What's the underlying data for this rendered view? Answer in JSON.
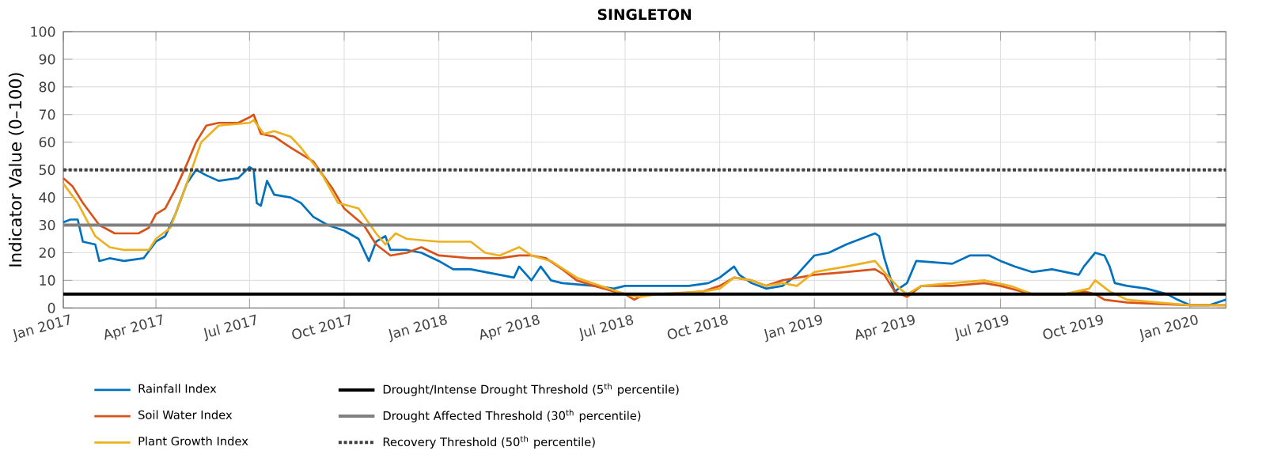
{
  "chart_data": {
    "type": "line",
    "title": "SINGLETON",
    "ylabel": "Indicator Value (0–100)",
    "xlim": [
      "2017-01-01",
      "2020-02-05"
    ],
    "ylim": [
      0,
      100
    ],
    "xticks": [
      {
        "value": "2017-01-01",
        "label": "Jan 2017"
      },
      {
        "value": "2017-04-01",
        "label": "Apr 2017"
      },
      {
        "value": "2017-07-01",
        "label": "Jul 2017"
      },
      {
        "value": "2017-10-01",
        "label": "Oct 2017"
      },
      {
        "value": "2018-01-01",
        "label": "Jan 2018"
      },
      {
        "value": "2018-04-01",
        "label": "Apr 2018"
      },
      {
        "value": "2018-07-01",
        "label": "Jul 2018"
      },
      {
        "value": "2018-10-01",
        "label": "Oct 2018"
      },
      {
        "value": "2019-01-01",
        "label": "Jan 2019"
      },
      {
        "value": "2019-04-01",
        "label": "Apr 2019"
      },
      {
        "value": "2019-07-01",
        "label": "Jul 2019"
      },
      {
        "value": "2019-10-01",
        "label": "Oct 2019"
      },
      {
        "value": "2020-01-01",
        "label": "Jan 2020"
      }
    ],
    "yticks": [
      0,
      10,
      20,
      30,
      40,
      50,
      60,
      70,
      80,
      90,
      100
    ],
    "grid": true,
    "legend": "bottom",
    "marker": "none",
    "line_style": "solid",
    "series": [
      {
        "name": "Rainfall Index",
        "color": "#0072bd",
        "x": [
          "2017-01-01",
          "2017-01-08",
          "2017-01-15",
          "2017-01-20",
          "2017-02-01",
          "2017-02-05",
          "2017-02-15",
          "2017-03-01",
          "2017-03-20",
          "2017-04-01",
          "2017-04-10",
          "2017-04-20",
          "2017-05-01",
          "2017-05-10",
          "2017-05-20",
          "2017-06-01",
          "2017-06-20",
          "2017-07-01",
          "2017-07-05",
          "2017-07-08",
          "2017-07-12",
          "2017-07-18",
          "2017-07-25",
          "2017-08-10",
          "2017-08-20",
          "2017-09-01",
          "2017-09-15",
          "2017-10-01",
          "2017-10-15",
          "2017-10-25",
          "2017-11-01",
          "2017-11-10",
          "2017-11-15",
          "2017-12-01",
          "2017-12-15",
          "2018-01-01",
          "2018-01-15",
          "2018-02-01",
          "2018-02-15",
          "2018-03-01",
          "2018-03-15",
          "2018-03-20",
          "2018-04-01",
          "2018-04-10",
          "2018-04-20",
          "2018-05-01",
          "2018-06-01",
          "2018-06-20",
          "2018-07-01",
          "2018-08-01",
          "2018-09-01",
          "2018-09-20",
          "2018-10-01",
          "2018-10-15",
          "2018-10-20",
          "2018-11-01",
          "2018-11-15",
          "2018-12-01",
          "2018-12-15",
          "2019-01-01",
          "2019-01-15",
          "2019-02-01",
          "2019-02-15",
          "2019-03-01",
          "2019-03-05",
          "2019-03-10",
          "2019-03-15",
          "2019-03-20",
          "2019-04-01",
          "2019-04-10",
          "2019-05-15",
          "2019-06-01",
          "2019-06-20",
          "2019-07-01",
          "2019-07-15",
          "2019-08-01",
          "2019-08-20",
          "2019-09-15",
          "2019-09-20",
          "2019-10-01",
          "2019-10-10",
          "2019-10-15",
          "2019-10-20",
          "2019-11-01",
          "2019-11-20",
          "2019-12-10",
          "2019-12-20",
          "2020-01-01",
          "2020-01-20",
          "2020-02-05"
        ],
        "values": [
          31,
          32,
          32,
          24,
          23,
          17,
          18,
          17,
          18,
          24,
          26,
          34,
          45,
          50,
          48,
          46,
          47,
          51,
          50,
          38,
          37,
          46,
          41,
          40,
          38,
          33,
          30,
          28,
          25,
          17,
          24,
          26,
          21,
          21,
          20,
          17,
          14,
          14,
          13,
          12,
          11,
          15,
          10,
          15,
          10,
          9,
          8,
          7,
          8,
          8,
          8,
          9,
          11,
          15,
          12,
          9,
          7,
          8,
          12,
          19,
          20,
          23,
          25,
          27,
          26,
          18,
          12,
          6,
          9,
          17,
          16,
          19,
          19,
          17,
          15,
          13,
          14,
          12,
          15,
          20,
          19,
          15,
          9,
          8,
          7,
          5,
          3,
          1,
          1,
          3
        ]
      },
      {
        "name": "Soil Water Index",
        "color": "#d95319",
        "x": [
          "2017-01-01",
          "2017-01-10",
          "2017-01-20",
          "2017-02-05",
          "2017-02-20",
          "2017-03-15",
          "2017-03-25",
          "2017-04-01",
          "2017-04-10",
          "2017-04-20",
          "2017-05-01",
          "2017-05-10",
          "2017-05-20",
          "2017-06-01",
          "2017-06-20",
          "2017-07-01",
          "2017-07-05",
          "2017-07-12",
          "2017-07-25",
          "2017-08-10",
          "2017-09-01",
          "2017-09-20",
          "2017-10-01",
          "2017-10-20",
          "2017-11-01",
          "2017-11-15",
          "2017-12-01",
          "2017-12-15",
          "2018-01-01",
          "2018-02-01",
          "2018-03-01",
          "2018-03-20",
          "2018-04-01",
          "2018-04-15",
          "2018-05-01",
          "2018-05-15",
          "2018-06-01",
          "2018-06-20",
          "2018-07-01",
          "2018-07-10",
          "2018-07-20",
          "2018-08-15",
          "2018-09-15",
          "2018-10-01",
          "2018-10-15",
          "2018-11-01",
          "2018-11-15",
          "2018-12-01",
          "2019-01-01",
          "2019-02-01",
          "2019-03-01",
          "2019-03-10",
          "2019-03-20",
          "2019-04-01",
          "2019-04-15",
          "2019-05-15",
          "2019-06-15",
          "2019-07-01",
          "2019-08-01",
          "2019-09-01",
          "2019-09-20",
          "2019-10-01",
          "2019-10-10",
          "2019-11-01",
          "2019-12-01",
          "2020-01-01",
          "2020-02-05"
        ],
        "values": [
          47,
          44,
          38,
          30,
          27,
          27,
          29,
          34,
          36,
          43,
          52,
          60,
          66,
          67,
          67,
          69,
          70,
          63,
          62,
          58,
          53,
          43,
          36,
          30,
          23,
          19,
          20,
          22,
          19,
          18,
          18,
          19,
          19,
          18,
          14,
          10,
          8,
          6,
          5,
          3,
          5,
          5,
          6,
          8,
          11,
          10,
          8,
          10,
          12,
          13,
          14,
          12,
          6,
          4,
          8,
          8,
          9,
          8,
          5,
          5,
          6,
          5,
          3,
          2,
          1.5,
          1,
          1
        ]
      },
      {
        "name": "Plant Growth Index",
        "color": "#edb120",
        "x": [
          "2017-01-01",
          "2017-01-15",
          "2017-02-01",
          "2017-02-15",
          "2017-03-01",
          "2017-03-25",
          "2017-04-01",
          "2017-04-15",
          "2017-05-01",
          "2017-05-15",
          "2017-06-01",
          "2017-07-01",
          "2017-07-05",
          "2017-07-15",
          "2017-07-25",
          "2017-08-10",
          "2017-08-20",
          "2017-09-10",
          "2017-09-25",
          "2017-10-15",
          "2017-11-01",
          "2017-11-10",
          "2017-11-20",
          "2017-12-01",
          "2018-01-01",
          "2018-02-01",
          "2018-02-15",
          "2018-03-01",
          "2018-03-20",
          "2018-04-01",
          "2018-04-20",
          "2018-05-15",
          "2018-06-15",
          "2018-07-01",
          "2018-07-15",
          "2018-08-01",
          "2018-09-15",
          "2018-10-01",
          "2018-10-15",
          "2018-11-01",
          "2018-11-15",
          "2018-12-01",
          "2018-12-15",
          "2019-01-01",
          "2019-02-01",
          "2019-03-01",
          "2019-03-10",
          "2019-03-25",
          "2019-04-01",
          "2019-04-15",
          "2019-05-15",
          "2019-06-15",
          "2019-07-10",
          "2019-08-01",
          "2019-09-01",
          "2019-09-25",
          "2019-10-01",
          "2019-10-15",
          "2019-11-01",
          "2019-12-01",
          "2020-01-01",
          "2020-02-05"
        ],
        "values": [
          45,
          38,
          26,
          22,
          21,
          21,
          25,
          29,
          45,
          60,
          66,
          67,
          68,
          63,
          64,
          62,
          58,
          48,
          38,
          36,
          27,
          23,
          27,
          25,
          24,
          24,
          20,
          19,
          22,
          19,
          17,
          11,
          7,
          5,
          4,
          5,
          6,
          7,
          11,
          10,
          8,
          9,
          8,
          13,
          15,
          17,
          13,
          7,
          5,
          8,
          9,
          10,
          8,
          5,
          5,
          7,
          10,
          6,
          3,
          2,
          1,
          1
        ]
      }
    ],
    "ref_lines": [
      {
        "axis": "y",
        "value": 5,
        "label": "Drought/Intense Drought Threshold (5$^{th}$ percentile)",
        "color": "#000000",
        "line_style": "solid"
      },
      {
        "axis": "y",
        "value": 30,
        "label": "Drought Affected Threshold (30$^{th}$ percentile)",
        "color": "#808080",
        "line_style": "solid"
      },
      {
        "axis": "y",
        "value": 50,
        "label": "Recovery Threshold (50$^{th}$ percentile)",
        "color": "#404040",
        "line_style": "dotted"
      }
    ]
  }
}
